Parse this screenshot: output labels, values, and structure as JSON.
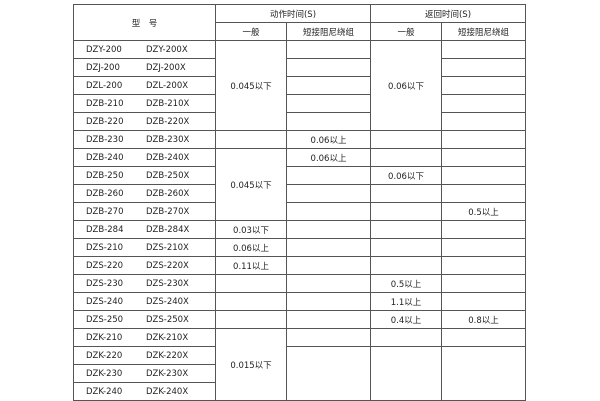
{
  "header": {
    "model": "型　号",
    "action_time": "动作时间(S)",
    "return_time": "返回时间(S)",
    "general": "一般",
    "short_damping": "短接阻尼绕组"
  },
  "rows": [
    {
      "model": [
        "DZY-200",
        "DZY-200X"
      ],
      "cells": [
        {
          "text": "0.045以下",
          "rowspan": 5
        },
        {
          "text": ""
        },
        {
          "text": "0.06以下",
          "rowspan": 5
        },
        {
          "text": ""
        }
      ]
    },
    {
      "model": [
        "DZJ-200",
        "DZJ-200X"
      ],
      "cells": [
        {
          "text": ""
        },
        {
          "text": ""
        }
      ]
    },
    {
      "model": [
        "DZL-200",
        "DZL-200X"
      ],
      "cells": [
        {
          "text": ""
        },
        {
          "text": ""
        }
      ]
    },
    {
      "model": [
        "DZB-210",
        "DZB-210X"
      ],
      "cells": [
        {
          "text": ""
        },
        {
          "text": ""
        }
      ]
    },
    {
      "model": [
        "DZB-220",
        "DZB-220X"
      ],
      "cells": [
        {
          "text": ""
        },
        {
          "text": ""
        }
      ]
    },
    {
      "model": [
        "DZB-230",
        "DZB-230X"
      ],
      "cells": [
        {
          "text": ""
        },
        {
          "text": "0.06以上"
        },
        {
          "text": ""
        },
        {
          "text": ""
        }
      ]
    },
    {
      "model": [
        "DZB-240",
        "DZB-240X"
      ],
      "cells": [
        {
          "text": "0.045以下",
          "rowspan": 4
        },
        {
          "text": "0.06以上"
        },
        {
          "text": ""
        },
        {
          "text": ""
        }
      ]
    },
    {
      "model": [
        "DZB-250",
        "DZB-250X"
      ],
      "cells": [
        {
          "text": ""
        },
        {
          "text": "0.06以下"
        },
        {
          "text": ""
        }
      ]
    },
    {
      "model": [
        "DZB-260",
        "DZB-260X"
      ],
      "cells": [
        {
          "text": ""
        },
        {
          "text": ""
        },
        {
          "text": ""
        }
      ]
    },
    {
      "model": [
        "DZB-270",
        "DZB-270X"
      ],
      "cells": [
        {
          "text": ""
        },
        {
          "text": ""
        },
        {
          "text": "0.5以上"
        }
      ]
    },
    {
      "model": [
        "DZB-284",
        "DZB-284X"
      ],
      "cells": [
        {
          "text": "0.03以下"
        },
        {
          "text": ""
        },
        {
          "text": ""
        },
        {
          "text": ""
        }
      ]
    },
    {
      "model": [
        "DZS-210",
        "DZS-210X"
      ],
      "cells": [
        {
          "text": "0.06以上"
        },
        {
          "text": ""
        },
        {
          "text": ""
        },
        {
          "text": ""
        }
      ]
    },
    {
      "model": [
        "DZS-220",
        "DZS-220X"
      ],
      "cells": [
        {
          "text": "0.11以上"
        },
        {
          "text": ""
        },
        {
          "text": ""
        },
        {
          "text": ""
        }
      ]
    },
    {
      "model": [
        "DZS-230",
        "DZS-230X"
      ],
      "cells": [
        {
          "text": ""
        },
        {
          "text": ""
        },
        {
          "text": "0.5以上"
        },
        {
          "text": ""
        }
      ]
    },
    {
      "model": [
        "DZS-240",
        "DZS-240X"
      ],
      "cells": [
        {
          "text": ""
        },
        {
          "text": ""
        },
        {
          "text": "1.1以上"
        },
        {
          "text": ""
        }
      ]
    },
    {
      "model": [
        "DZS-250",
        "DZS-250X"
      ],
      "cells": [
        {
          "text": ""
        },
        {
          "text": ""
        },
        {
          "text": "0.4以上"
        },
        {
          "text": "0.8以上"
        }
      ]
    },
    {
      "model": [
        "DZK-210",
        "DZK-210X"
      ],
      "cells": [
        {
          "text": "0.015以下",
          "rowspan": 4
        },
        {
          "text": ""
        },
        {
          "text": ""
        },
        {
          "text": ""
        }
      ]
    },
    {
      "model": [
        "DZK-220",
        "DZK-220X"
      ],
      "cells": [
        {
          "text": "",
          "rowspan": 3
        },
        {
          "text": "",
          "rowspan": 3
        },
        {
          "text": "",
          "rowspan": 3
        }
      ]
    },
    {
      "model": [
        "DZK-230",
        "DZK-230X"
      ],
      "cells": []
    },
    {
      "model": [
        "DZK-240",
        "DZK-240X"
      ],
      "cells": []
    }
  ]
}
